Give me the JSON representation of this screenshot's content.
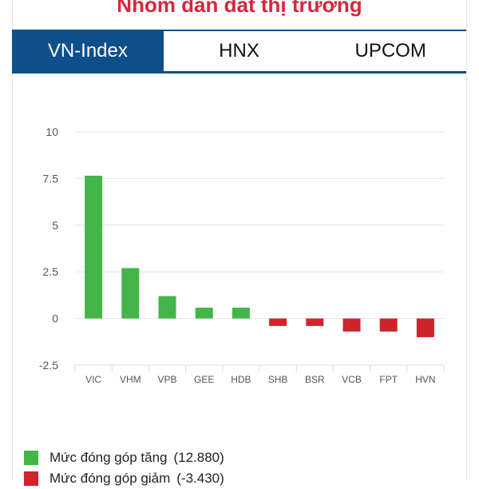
{
  "header": {
    "title": "Nhóm dẫn dắt thị trường"
  },
  "tabs": [
    {
      "label": "VN-Index",
      "active": true
    },
    {
      "label": "HNX",
      "active": false
    },
    {
      "label": "UPCOM",
      "active": false
    }
  ],
  "chart_data": {
    "type": "bar",
    "categories": [
      "VIC",
      "VHM",
      "VPB",
      "GEE",
      "HDB",
      "SHB",
      "BSR",
      "VCB",
      "FPT",
      "HVN"
    ],
    "values": [
      7.65,
      2.7,
      1.2,
      0.58,
      0.58,
      -0.4,
      -0.4,
      -0.7,
      -0.7,
      -1.0
    ],
    "ylim": [
      -2.5,
      10
    ],
    "yticks": [
      "10",
      "7.5",
      "5",
      "2.5",
      "0",
      "-2.5"
    ],
    "ytick_values": [
      10,
      7.5,
      5,
      2.5,
      0,
      -2.5
    ],
    "grid": true,
    "colors": {
      "positive": "#43b549",
      "negative": "#d0232c"
    },
    "legend": [
      {
        "label": "Mức đóng góp tăng",
        "value": "(12.880)",
        "color": "#43b549"
      },
      {
        "label": "Mức đóng góp giảm",
        "value": "(-3.430)",
        "color": "#d0232c"
      }
    ]
  },
  "theme": {
    "title_color": "#d7263d",
    "tab_active_bg": "#0e4f8b",
    "tab_border": "#0e4f8b"
  }
}
